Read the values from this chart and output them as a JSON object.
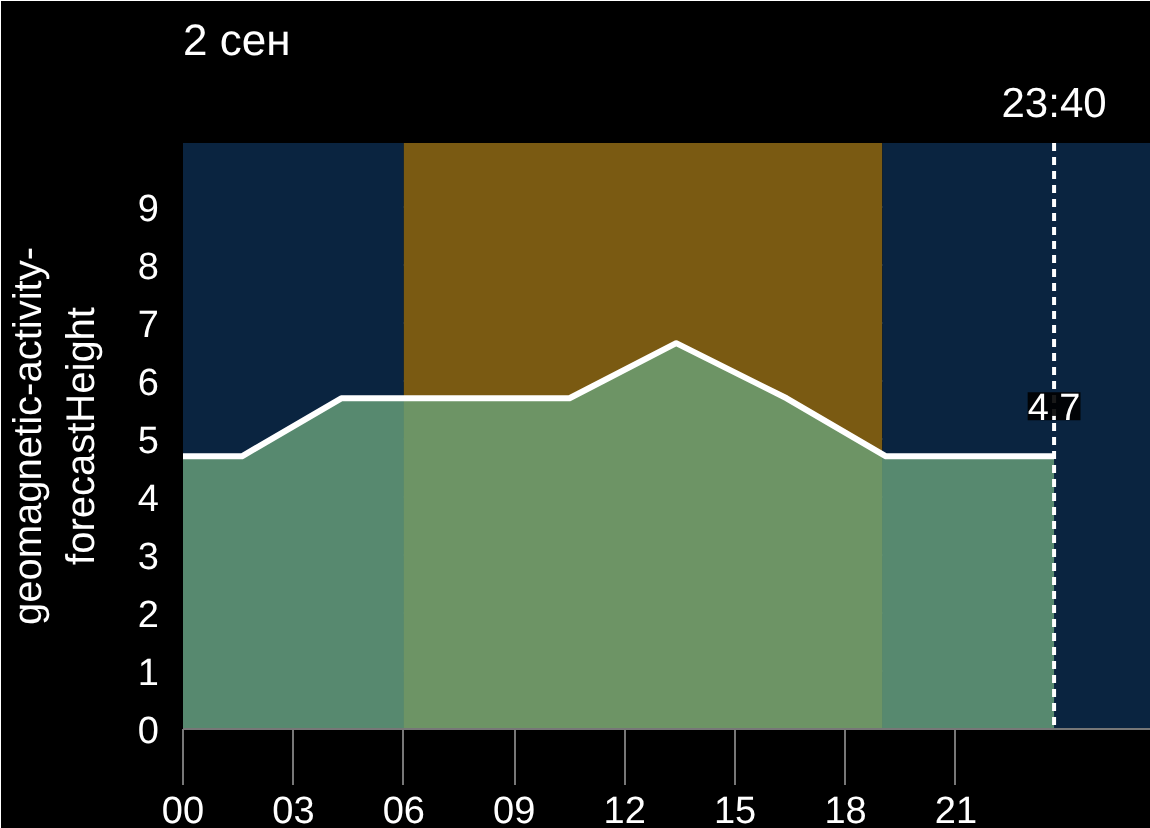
{
  "chart_data": {
    "type": "area",
    "title": "2 сен",
    "ylabel": "geomagnetic-activity-forecastHeight",
    "x": [
      0,
      1.6,
      4.3,
      10.5,
      13.4,
      16.4,
      19.1,
      23.6667
    ],
    "series": [
      {
        "color": "#ffffff",
        "values": [
          4.7,
          4.7,
          5.7,
          5.7,
          6.65,
          5.7,
          4.7,
          4.7
        ]
      }
    ],
    "xlim": [
      0,
      26.3
    ],
    "ylim": [
      0,
      10.1
    ],
    "xticks": [
      {
        "value": 0,
        "label": "00"
      },
      {
        "value": 3,
        "label": "03"
      },
      {
        "value": 6,
        "label": "06"
      },
      {
        "value": 9,
        "label": "09"
      },
      {
        "value": 12,
        "label": "12"
      },
      {
        "value": 15,
        "label": "15"
      },
      {
        "value": 18,
        "label": "18"
      },
      {
        "value": 21,
        "label": "21"
      }
    ],
    "yticks": [
      0,
      1,
      2,
      3,
      4,
      5,
      6,
      7,
      8,
      9
    ],
    "grid": "y",
    "marker": "none",
    "line_style": "solid",
    "bands": [
      {
        "axis": "x",
        "from": 0,
        "to": 6,
        "color": "#0a2440"
      },
      {
        "axis": "x",
        "from": 6,
        "to": 19,
        "color": "#7a5a12"
      },
      {
        "axis": "x",
        "from": 19,
        "to": 26.3,
        "color": "#0a2440"
      }
    ],
    "ref_lines": [
      {
        "axis": "x",
        "value": 23.6667,
        "color": "#ffffff",
        "line_style": "dashed"
      }
    ],
    "annotations": [
      "23:40",
      {
        "text": "4.7",
        "x": 23.6667,
        "y": 4.7
      }
    ]
  }
}
